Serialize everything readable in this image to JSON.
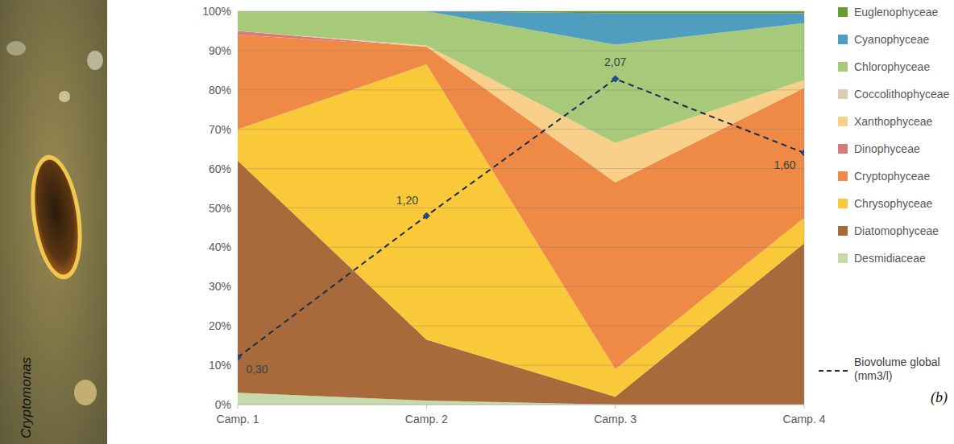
{
  "image": {
    "label": "Cryptomonas"
  },
  "chart_data": {
    "type": "area",
    "stacked": true,
    "grid": true,
    "legend": "right",
    "categories": [
      "Camp. 1",
      "Camp. 2",
      "Camp. 3",
      "Camp. 4"
    ],
    "ylim": [
      0,
      100
    ],
    "yticks": [
      {
        "value": 0,
        "label": "0%"
      },
      {
        "value": 10,
        "label": "10%"
      },
      {
        "value": 20,
        "label": "20%"
      },
      {
        "value": 30,
        "label": "30%"
      },
      {
        "value": 40,
        "label": "40%"
      },
      {
        "value": 50,
        "label": "50%"
      },
      {
        "value": 60,
        "label": "60%"
      },
      {
        "value": 70,
        "label": "70%"
      },
      {
        "value": 80,
        "label": "80%"
      },
      {
        "value": 90,
        "label": "90%"
      },
      {
        "value": 100,
        "label": "100%"
      }
    ],
    "y2lim": [
      0,
      2.5
    ],
    "y2ticks": [],
    "annotations": [
      "(b)"
    ],
    "series": [
      {
        "name": "Desmidiaceae",
        "color": "#c5dcaa",
        "values": [
          3,
          1,
          0,
          0
        ]
      },
      {
        "name": "Diatomophyceae",
        "color": "#a86a3a",
        "values": [
          59,
          15.5,
          2,
          41
        ]
      },
      {
        "name": "Chrysophyceae",
        "color": "#f9c93a",
        "values": [
          8,
          70,
          7,
          6.5
        ]
      },
      {
        "name": "Cryptophyceae",
        "color": "#ee8a45",
        "values": [
          24,
          4.5,
          47.5,
          33
        ]
      },
      {
        "name": "Dinophyceae",
        "color": "#d77a7a",
        "values": [
          1,
          0,
          0,
          0
        ]
      },
      {
        "name": "Xanthophyceae",
        "color": "#f8d08a",
        "values": [
          0,
          0.3,
          10,
          2
        ]
      },
      {
        "name": "Coccolithophyceae",
        "color": "#d9cdb5",
        "values": [
          0,
          0,
          0,
          0
        ]
      },
      {
        "name": "Chlorophyceae",
        "color": "#a6c97a",
        "values": [
          5,
          8.7,
          25,
          14.5
        ]
      },
      {
        "name": "Cyanophyceae",
        "color": "#4f9dbf",
        "values": [
          0,
          0,
          8,
          2.5
        ]
      },
      {
        "name": "Euglenophyceae",
        "color": "#6b9a2e",
        "values": [
          0,
          0,
          0.5,
          0.5
        ]
      },
      {
        "name": "Biovolume global (mm3/l)",
        "type": "line",
        "axis": "y2",
        "color": "#1b2b4b",
        "line_style": "dashed",
        "marker": "diamond",
        "data_labels": true,
        "values": [
          0.3,
          1.2,
          2.07,
          1.6
        ],
        "value_labels": [
          "0,30",
          "1,20",
          "2,07",
          "1,60"
        ]
      }
    ]
  }
}
